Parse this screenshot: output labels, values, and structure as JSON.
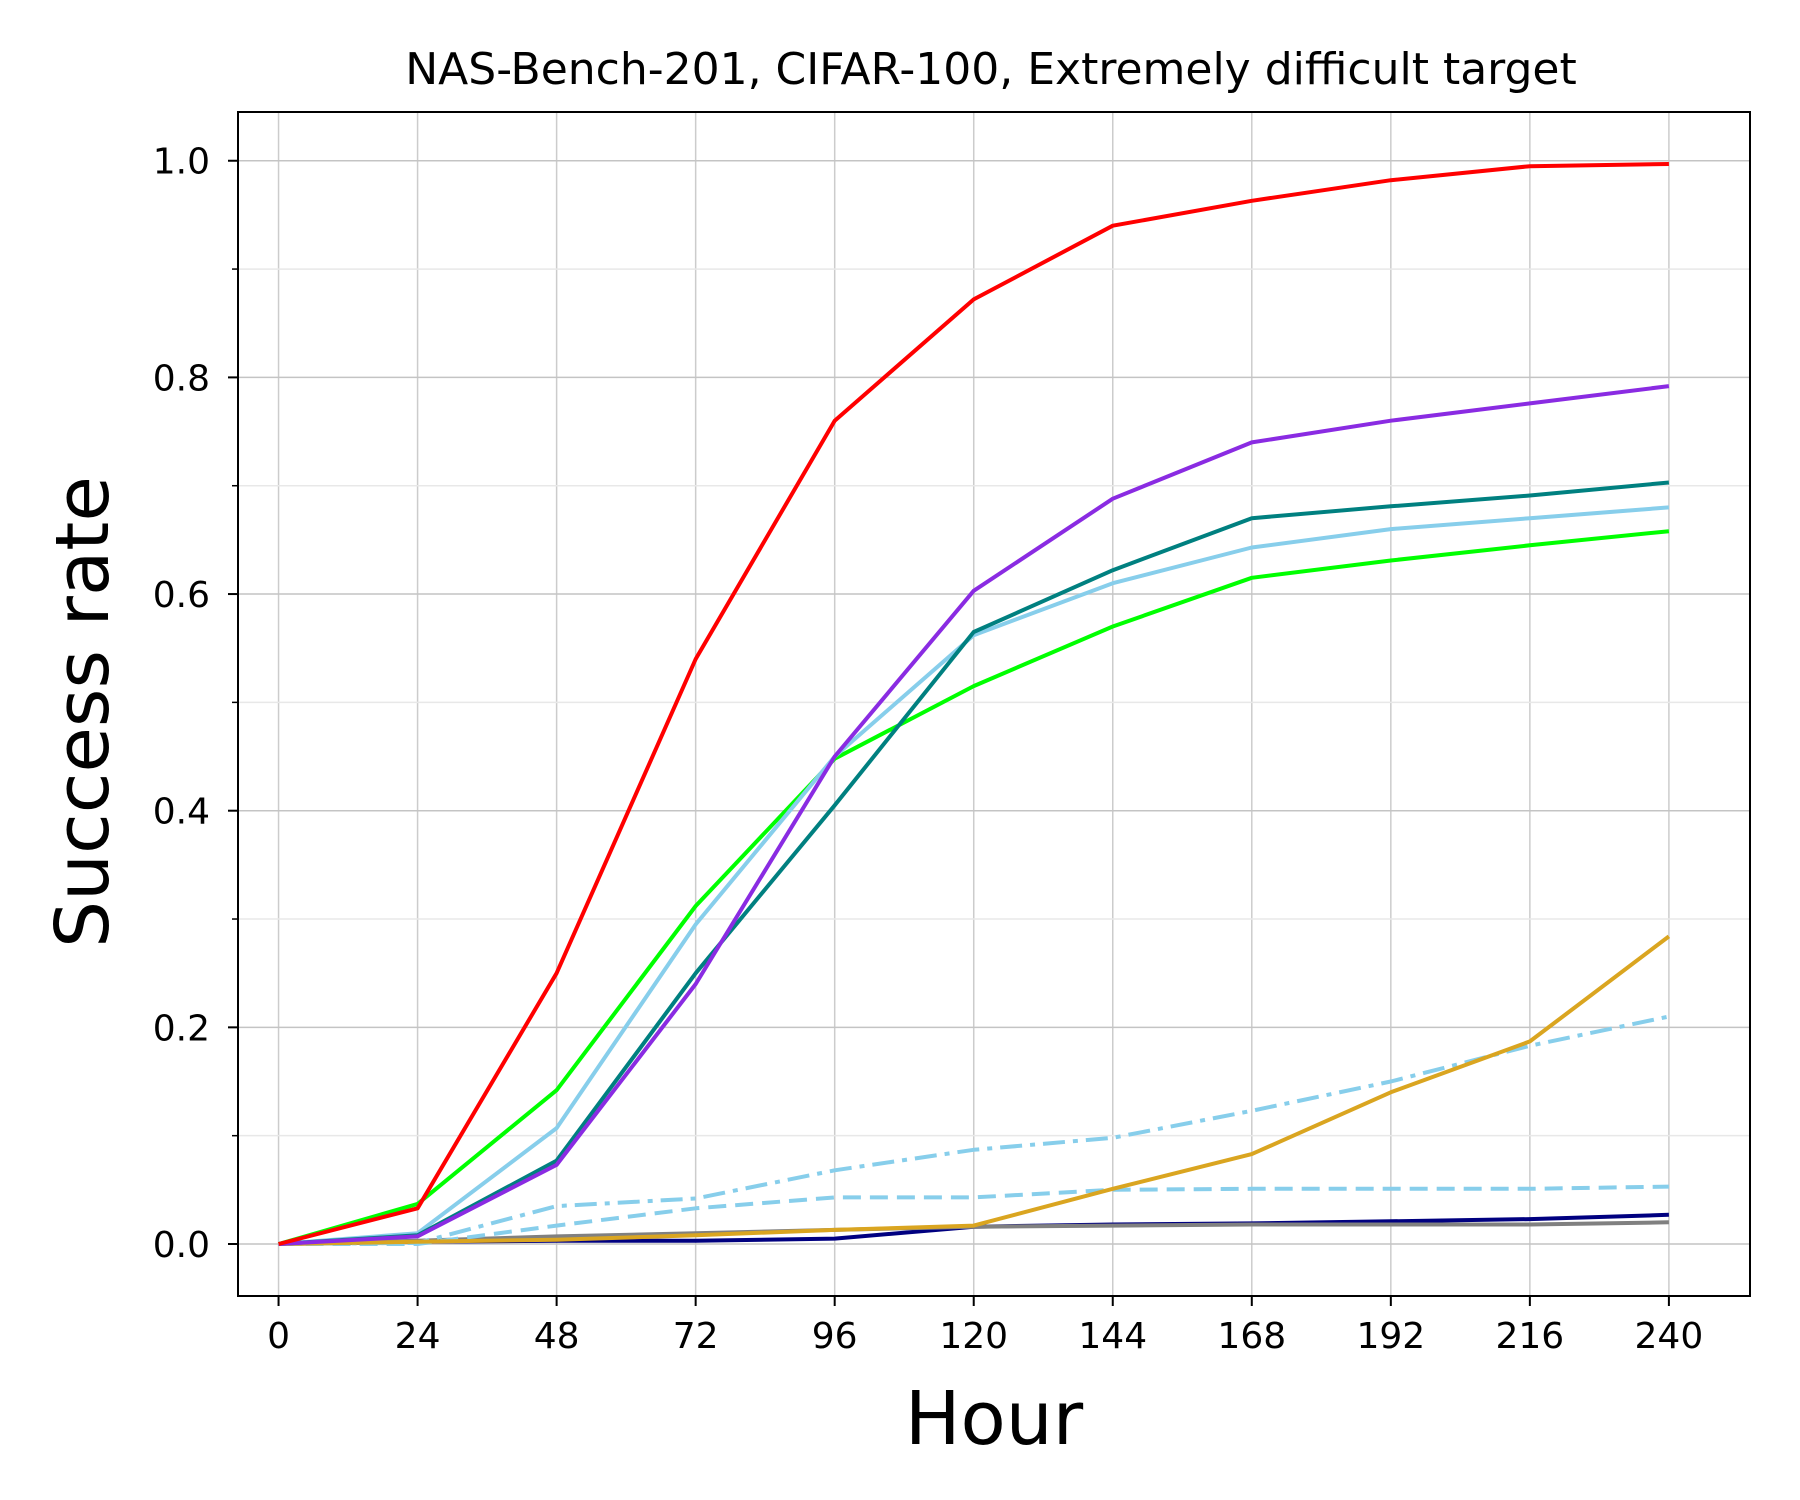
{
  "chart_data": {
    "type": "line",
    "title": "NAS-Bench-201, CIFAR-100, Extremely difficult target",
    "xlabel": "Hour",
    "ylabel": "Success rate",
    "xlim": [
      -7,
      254
    ],
    "ylim": [
      -0.048,
      1.045
    ],
    "x": [
      0,
      24,
      48,
      72,
      96,
      120,
      144,
      168,
      192,
      216,
      240
    ],
    "x_ticks": [
      0,
      24,
      48,
      72,
      96,
      120,
      144,
      168,
      192,
      216,
      240
    ],
    "x_tick_labels": [
      "0",
      "24",
      "48",
      "72",
      "96",
      "120",
      "144",
      "168",
      "192",
      "216",
      "240"
    ],
    "y_ticks": [
      0.0,
      0.2,
      0.4,
      0.6,
      0.8,
      1.0
    ],
    "y_tick_labels": [
      "0.0",
      "0.2",
      "0.4",
      "0.6",
      "0.8",
      "1.0"
    ],
    "y_minor_ticks": [
      0.1,
      0.3,
      0.5,
      0.7,
      0.9
    ],
    "grid": true,
    "legend": "none",
    "series": [
      {
        "name": "red",
        "color": "#ff0000",
        "style": "solid",
        "values": [
          0.0,
          0.033,
          0.25,
          0.54,
          0.76,
          0.872,
          0.94,
          0.963,
          0.982,
          0.995,
          0.997
        ]
      },
      {
        "name": "purple",
        "color": "#8a2be2",
        "style": "solid",
        "values": [
          0.0,
          0.007,
          0.073,
          0.24,
          0.45,
          0.603,
          0.688,
          0.74,
          0.76,
          0.776,
          0.792
        ]
      },
      {
        "name": "teal",
        "color": "#008080",
        "style": "solid",
        "values": [
          0.0,
          0.008,
          0.077,
          0.25,
          0.405,
          0.565,
          0.622,
          0.67,
          0.681,
          0.691,
          0.703
        ]
      },
      {
        "name": "skyblue",
        "color": "#87ceeb",
        "style": "solid",
        "values": [
          0.0,
          0.01,
          0.107,
          0.295,
          0.45,
          0.562,
          0.61,
          0.643,
          0.66,
          0.67,
          0.68
        ]
      },
      {
        "name": "lime",
        "color": "#00ff00",
        "style": "solid",
        "values": [
          0.0,
          0.037,
          0.142,
          0.312,
          0.448,
          0.515,
          0.57,
          0.615,
          0.631,
          0.645,
          0.658
        ]
      },
      {
        "name": "goldenrod",
        "color": "#daa520",
        "style": "solid",
        "values": [
          0.0,
          0.002,
          0.004,
          0.008,
          0.013,
          0.017,
          0.051,
          0.083,
          0.14,
          0.187,
          0.284
        ]
      },
      {
        "name": "skyblue-dashdot",
        "color": "#87ceeb",
        "style": "dashdot",
        "values": [
          0.0,
          0.001,
          0.035,
          0.042,
          0.068,
          0.087,
          0.098,
          0.123,
          0.15,
          0.183,
          0.21
        ]
      },
      {
        "name": "skyblue-dashed",
        "color": "#87ceeb",
        "style": "dashed",
        "values": [
          0.0,
          0.0,
          0.017,
          0.033,
          0.043,
          0.043,
          0.05,
          0.051,
          0.051,
          0.051,
          0.053
        ]
      },
      {
        "name": "gray",
        "color": "#808080",
        "style": "solid",
        "values": [
          0.0,
          0.003,
          0.007,
          0.01,
          0.013,
          0.016,
          0.017,
          0.018,
          0.018,
          0.018,
          0.02
        ]
      },
      {
        "name": "navy",
        "color": "#000080",
        "style": "solid",
        "values": [
          0.0,
          0.002,
          0.003,
          0.003,
          0.005,
          0.016,
          0.018,
          0.019,
          0.021,
          0.023,
          0.027
        ]
      }
    ]
  }
}
